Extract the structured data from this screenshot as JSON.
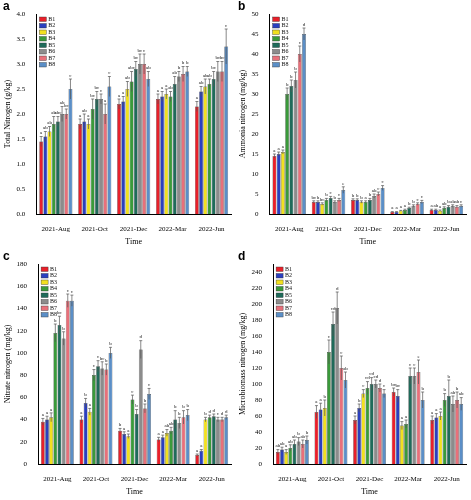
{
  "chart_data": [
    {
      "type": "bar",
      "panel": "a",
      "y_label": "Total Nitrogen (g/kg)",
      "x_label": "Time",
      "categories": [
        "2021-Aug",
        "2021-Oct",
        "2021-Dec",
        "2022-Mar",
        "2022-Jun"
      ],
      "ylim": [
        0,
        4.0
      ],
      "yticks": [
        {
          "value": 0,
          "label": "0.0"
        },
        0.5,
        {
          "value": 1,
          "label": "1.0"
        },
        1.5,
        {
          "value": 2,
          "label": "2.0"
        },
        2.5,
        {
          "value": 3,
          "label": "3.0"
        },
        3.5,
        {
          "value": 4,
          "label": "4.0"
        }
      ],
      "grid": false,
      "legend": "upper left",
      "series": [
        {
          "name": "B1",
          "color": "#e8202a",
          "values": [
            1.45,
            1.8,
            2.2,
            2.3,
            2.15
          ],
          "errors": [
            0.1,
            0.1,
            0.1,
            0.1,
            0.1
          ],
          "letters": [
            "a",
            "a",
            "a",
            "a",
            "a"
          ]
        },
        {
          "name": "B2",
          "color": "#2a3fbf",
          "values": [
            1.55,
            1.85,
            2.25,
            2.35,
            2.45
          ],
          "errors": [
            0.1,
            0.15,
            0.1,
            0.1,
            0.1
          ],
          "letters": [
            "ab",
            "ab",
            "a",
            "a",
            "ab"
          ]
        },
        {
          "name": "B3",
          "color": "#f2e01f",
          "values": [
            1.65,
            1.8,
            2.5,
            2.4,
            2.55
          ],
          "errors": [
            0.1,
            0.1,
            0.15,
            0.1,
            0.15
          ],
          "letters": [
            "ab",
            "a",
            "ab",
            "a",
            "ab"
          ]
        },
        {
          "name": "B4",
          "color": "#3a9a3a",
          "values": [
            1.8,
            2.1,
            2.65,
            2.35,
            2.6
          ],
          "errors": [
            0.15,
            0.2,
            0.2,
            0.1,
            0.1
          ],
          "letters": [
            "ab",
            "bc",
            "abc",
            "ab",
            "ab"
          ]
        },
        {
          "name": "B5",
          "color": "#1f6b5a",
          "values": [
            1.85,
            2.3,
            2.9,
            2.6,
            2.7
          ],
          "errors": [
            0.1,
            0.15,
            0.15,
            0.15,
            0.15
          ],
          "letters": [
            "abc",
            "bc",
            "bc",
            "ab",
            "bc"
          ]
        },
        {
          "name": "B6",
          "color": "#8c8c8c",
          "values": [
            2.0,
            2.3,
            3.0,
            2.75,
            2.85
          ],
          "errors": [
            0.15,
            0.1,
            0.2,
            0.1,
            0.2
          ],
          "letters": [
            "ab",
            "c",
            "bc",
            "b",
            "bc"
          ]
        },
        {
          "name": "B7",
          "color": "#e8707a",
          "values": [
            2.0,
            2.0,
            3.0,
            2.8,
            2.85
          ],
          "errors": [
            0.1,
            0.2,
            0.2,
            0.15,
            0.2
          ],
          "letters": [
            "bc",
            "a",
            "c",
            "b",
            "bc"
          ]
        },
        {
          "name": "B8",
          "color": "#5b8fc7",
          "values": [
            2.5,
            2.55,
            2.7,
            2.85,
            3.35
          ],
          "errors": [
            0.2,
            0.2,
            0.15,
            0.1,
            0.35
          ],
          "letters": [
            "c",
            "c",
            "ab",
            "b",
            "c"
          ]
        }
      ]
    },
    {
      "type": "bar",
      "panel": "b",
      "y_label": "Ammonia nitrogen (mg/kg)",
      "x_label": "Time",
      "categories": [
        "2021-Aug",
        "2021-Oct",
        "2021-Dec",
        "2022-Mar",
        "2022-Jun"
      ],
      "ylim": [
        0,
        50
      ],
      "yticks": [
        0,
        5,
        10,
        15,
        20,
        25,
        30,
        35,
        40,
        45,
        50
      ],
      "grid": false,
      "legend": "upper left",
      "series": [
        {
          "name": "B1",
          "color": "#e8202a",
          "values": [
            14.5,
            3,
            3.5,
            0.5,
            1
          ],
          "errors": [
            0.5,
            0.3,
            0.3,
            0.1,
            0.2
          ],
          "letters": [
            "a",
            "bc",
            "b",
            "a",
            "a"
          ]
        },
        {
          "name": "B2",
          "color": "#2a3fbf",
          "values": [
            15,
            3,
            3.5,
            0.5,
            1
          ],
          "errors": [
            0.5,
            0.3,
            0.3,
            0.1,
            0.2
          ],
          "letters": [
            "a",
            "b",
            "b",
            "a",
            "ab"
          ]
        },
        {
          "name": "B3",
          "color": "#f2e01f",
          "values": [
            15.5,
            2.5,
            3,
            0.8,
            0.8
          ],
          "errors": [
            0.5,
            0.3,
            0.3,
            0.1,
            0.2
          ],
          "letters": [
            "a",
            "bc",
            "b",
            "a",
            "a"
          ]
        },
        {
          "name": "B4",
          "color": "#3a9a3a",
          "values": [
            30,
            3.5,
            3,
            1,
            1.5
          ],
          "errors": [
            1.5,
            0.4,
            0.3,
            0.2,
            0.3
          ],
          "letters": [
            "b",
            "b",
            "a",
            "a",
            "ab"
          ]
        },
        {
          "name": "B5",
          "color": "#1f6b5a",
          "values": [
            32,
            4,
            3.5,
            1.5,
            1.8
          ],
          "errors": [
            1.5,
            0.4,
            0.4,
            0.2,
            0.3
          ],
          "letters": [
            "b",
            "c",
            "b",
            "b",
            "b"
          ]
        },
        {
          "name": "B6",
          "color": "#8c8c8c",
          "values": [
            33.5,
            3,
            4.5,
            2,
            2
          ],
          "errors": [
            2,
            0.3,
            0.5,
            0.3,
            0.3
          ],
          "letters": [
            "b",
            "b",
            "ab",
            "b",
            "ab"
          ]
        },
        {
          "name": "B7",
          "color": "#e8707a",
          "values": [
            40,
            3.5,
            5,
            2.5,
            1.8
          ],
          "errors": [
            2,
            0.4,
            0.5,
            0.3,
            0.3
          ],
          "letters": [
            "c",
            "c",
            "c",
            "c",
            "ab"
          ]
        },
        {
          "name": "B8",
          "color": "#5b8fc7",
          "values": [
            45,
            6,
            6.5,
            3,
            2
          ],
          "errors": [
            1.5,
            0.8,
            0.6,
            0.4,
            0.3
          ],
          "letters": [
            "d",
            "e",
            "c",
            "c",
            "c"
          ]
        }
      ]
    },
    {
      "type": "bar",
      "panel": "c",
      "y_label": "Nitrate nitrogen (mg/kg)",
      "x_label": "Time",
      "categories": [
        "2021-Aug",
        "2021-Oct",
        "2021-Dec",
        "2022-Mar",
        "2022-Jun"
      ],
      "ylim": [
        0,
        180
      ],
      "yticks": [
        0,
        20,
        40,
        60,
        80,
        100,
        120,
        140,
        160,
        180
      ],
      "grid": false,
      "legend": "upper left",
      "series": [
        {
          "name": "B1",
          "color": "#e8202a",
          "values": [
            38,
            40,
            30,
            22,
            8
          ],
          "errors": [
            3,
            3,
            2,
            2,
            1
          ],
          "letters": [
            "a",
            "a",
            "b",
            "a",
            "a"
          ]
        },
        {
          "name": "B2",
          "color": "#2a3fbf",
          "values": [
            40,
            55,
            27,
            24,
            12
          ],
          "errors": [
            3,
            4,
            2,
            2,
            1
          ],
          "letters": [
            "a",
            "b",
            "a",
            "a",
            "a"
          ]
        },
        {
          "name": "B3",
          "color": "#f2e01f",
          "values": [
            42,
            47,
            25,
            28,
            40
          ],
          "errors": [
            4,
            3,
            2,
            3,
            2
          ],
          "letters": [
            "a",
            "a",
            "a",
            "ab",
            "b"
          ]
        },
        {
          "name": "B4",
          "color": "#3a9a3a",
          "values": [
            118,
            80,
            58,
            30,
            42
          ],
          "errors": [
            8,
            5,
            4,
            3,
            2
          ],
          "letters": [
            "b",
            "c",
            "c",
            "ab",
            "d"
          ]
        },
        {
          "name": "B5",
          "color": "#1f6b5a",
          "values": [
            125,
            88,
            45,
            40,
            43
          ],
          "errors": [
            8,
            5,
            4,
            8,
            2
          ],
          "letters": [
            "bc",
            "c",
            "b",
            "b",
            "d"
          ]
        },
        {
          "name": "B6",
          "color": "#8c8c8c",
          "values": [
            113,
            86,
            103,
            37,
            40
          ],
          "errors": [
            6,
            6,
            8,
            5,
            2
          ],
          "letters": [
            "b",
            "bc",
            "d",
            "b",
            "c"
          ]
        },
        {
          "name": "B7",
          "color": "#e8707a",
          "values": [
            147,
            85,
            50,
            42,
            40
          ],
          "errors": [
            6,
            5,
            4,
            6,
            2
          ],
          "letters": [
            "c",
            "b",
            "b",
            "b",
            "d"
          ]
        },
        {
          "name": "B8",
          "color": "#5b8fc7",
          "values": [
            147,
            100,
            63,
            44,
            42
          ],
          "errors": [
            5,
            5,
            5,
            5,
            2
          ],
          "letters": [
            "c",
            "b",
            "c",
            "b",
            "d"
          ]
        }
      ]
    },
    {
      "type": "bar",
      "panel": "d",
      "y_label": "Microbiomass nitrogen (mg/kg)",
      "x_label": "Time",
      "categories": [
        "2021-Aug",
        "2021-Oct",
        "2021-Dec",
        "2022-Mar",
        "2022-Jun"
      ],
      "ylim": [
        0,
        250
      ],
      "yticks": [
        0,
        20,
        40,
        60,
        80,
        100,
        120,
        140,
        160,
        180,
        200,
        220,
        240
      ],
      "grid": false,
      "legend": "upper left",
      "series": [
        {
          "name": "B1",
          "color": "#e8202a",
          "values": [
            15,
            65,
            55,
            90,
            55
          ],
          "errors": [
            3,
            8,
            5,
            5,
            5
          ],
          "letters": [
            "ab",
            "a",
            "a",
            "bc",
            "a"
          ]
        },
        {
          "name": "B2",
          "color": "#2a3fbf",
          "values": [
            18,
            68,
            70,
            85,
            58
          ],
          "errors": [
            3,
            8,
            5,
            8,
            5
          ],
          "letters": [
            "ab",
            "a",
            "b",
            "bc",
            "a"
          ]
        },
        {
          "name": "B3",
          "color": "#f2e01f",
          "values": [
            15,
            70,
            88,
            48,
            60
          ],
          "errors": [
            3,
            10,
            5,
            5,
            5
          ],
          "letters": [
            "a",
            "b",
            "c",
            "a",
            "a"
          ]
        },
        {
          "name": "B4",
          "color": "#3a9a3a",
          "values": [
            20,
            140,
            95,
            50,
            80
          ],
          "errors": [
            4,
            15,
            8,
            5,
            8
          ],
          "letters": [
            "ab",
            "c",
            "cd",
            "a",
            "b"
          ]
        },
        {
          "name": "B5",
          "color": "#1f6b5a",
          "values": [
            25,
            175,
            100,
            110,
            85
          ],
          "errors": [
            5,
            15,
            8,
            10,
            20
          ],
          "letters": [
            "ab",
            "cd",
            "cd",
            "c",
            "b"
          ]
        },
        {
          "name": "B6",
          "color": "#8c8c8c",
          "values": [
            28,
            195,
            100,
            110,
            75
          ],
          "errors": [
            5,
            20,
            5,
            10,
            10
          ],
          "letters": [
            "b",
            "d",
            "cd",
            "c",
            "ab"
          ]
        },
        {
          "name": "B7",
          "color": "#e8707a",
          "values": [
            25,
            120,
            95,
            115,
            80
          ],
          "errors": [
            5,
            15,
            5,
            15,
            10
          ],
          "letters": [
            "ab",
            "c",
            "d",
            "e",
            "b"
          ]
        },
        {
          "name": "B8",
          "color": "#5b8fc7",
          "values": [
            30,
            105,
            88,
            80,
            75
          ],
          "errors": [
            5,
            10,
            5,
            10,
            8
          ],
          "letters": [
            "b",
            "ab",
            "c",
            "b",
            "ab"
          ]
        }
      ]
    }
  ]
}
